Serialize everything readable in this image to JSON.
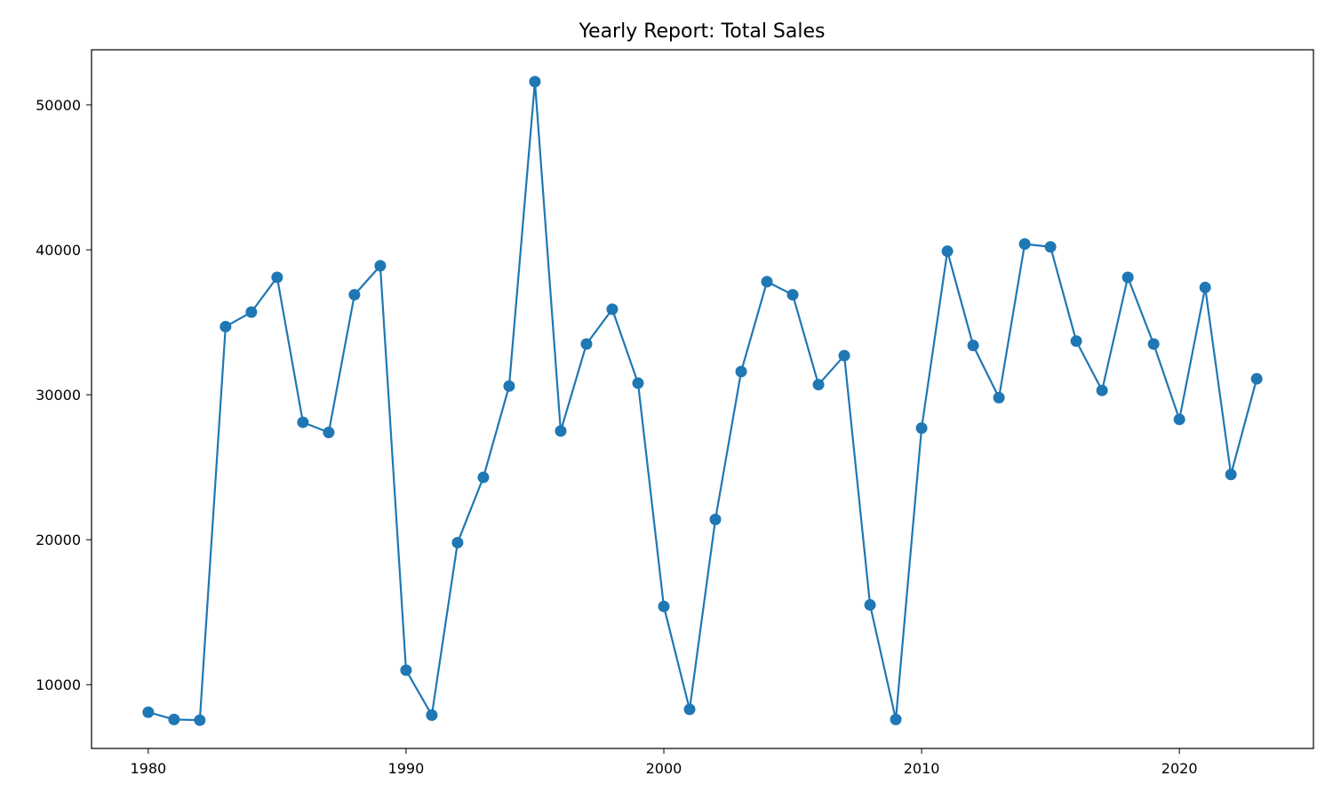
{
  "chart_data": {
    "type": "line",
    "title": "Yearly Report: Total Sales",
    "xlabel": "",
    "ylabel": "",
    "xlim": [
      1977.8,
      2025.2
    ],
    "ylim": [
      5600,
      53800
    ],
    "x_ticks": [
      1980,
      1990,
      2000,
      2010,
      2020
    ],
    "y_ticks": [
      10000,
      20000,
      30000,
      40000,
      50000
    ],
    "grid": false,
    "color": "#1f77b4",
    "marker": "circle",
    "series": [
      {
        "x": [
          1980,
          1981,
          1982,
          1983,
          1984,
          1985,
          1986,
          1987,
          1988,
          1989,
          1990,
          1991,
          1992,
          1993,
          1994,
          1995,
          1996,
          1997,
          1998,
          1999,
          2000,
          2001,
          2002,
          2003,
          2004,
          2005,
          2006,
          2007,
          2008,
          2009,
          2010,
          2011,
          2012,
          2013,
          2014,
          2015,
          2016,
          2017,
          2018,
          2019,
          2020,
          2021,
          2022,
          2023
        ],
        "values": [
          8100,
          7600,
          7550,
          34700,
          35700,
          38100,
          28100,
          27400,
          36900,
          38900,
          11000,
          7900,
          19800,
          24300,
          30600,
          51600,
          27500,
          33500,
          35900,
          30800,
          15400,
          8300,
          21400,
          31600,
          37800,
          36900,
          30700,
          32700,
          15500,
          7600,
          27700,
          39900,
          33400,
          29800,
          40400,
          40200,
          33700,
          30300,
          38100,
          33500,
          28300,
          37400,
          24500,
          31100
        ]
      }
    ]
  }
}
